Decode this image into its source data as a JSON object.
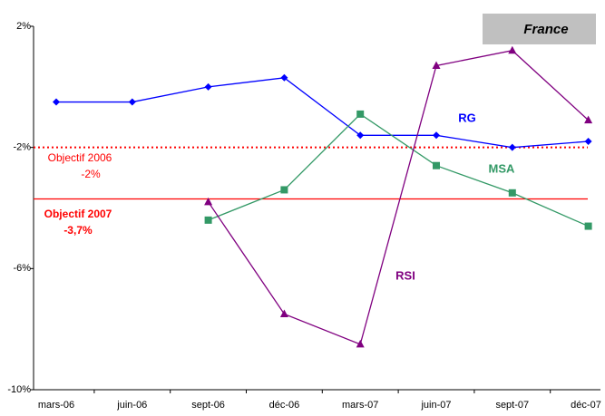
{
  "chart_data": {
    "type": "line",
    "title": "France",
    "categories": [
      "mars-06",
      "juin-06",
      "sept-06",
      "déc-06",
      "mars-07",
      "juin-07",
      "sept-07",
      "déc-07"
    ],
    "series": [
      {
        "name": "RG",
        "color": "#0000ff",
        "marker": "diamond",
        "values": [
          -0.5,
          -0.5,
          0.0,
          0.3,
          -1.6,
          -1.6,
          -2.0,
          -1.8
        ]
      },
      {
        "name": "MSA",
        "color": "#339966",
        "marker": "square",
        "values": [
          null,
          null,
          -4.4,
          -3.4,
          -0.9,
          -2.6,
          -3.5,
          -4.6
        ]
      },
      {
        "name": "RSI",
        "color": "#800080",
        "marker": "triangle",
        "values": [
          null,
          null,
          -3.8,
          -7.5,
          -8.5,
          0.7,
          1.2,
          -1.1
        ]
      }
    ],
    "reference_lines": [
      {
        "value": -2,
        "color": "#ff0000",
        "style": "dotted",
        "label": [
          "Objectif 2006",
          "-2%"
        ],
        "bold": false
      },
      {
        "value": -3.7,
        "color": "#ff0000",
        "style": "solid",
        "label": [
          "Objectif 2007",
          "-3,7%"
        ],
        "bold": true
      }
    ],
    "ylim": [
      -10,
      2
    ],
    "yticks": [
      {
        "value": -10,
        "label": "-10%"
      },
      {
        "value": -6,
        "label": "-6%"
      },
      {
        "value": -2,
        "label": "-2%"
      },
      {
        "value": 2,
        "label": "2%"
      }
    ],
    "grid": false
  }
}
